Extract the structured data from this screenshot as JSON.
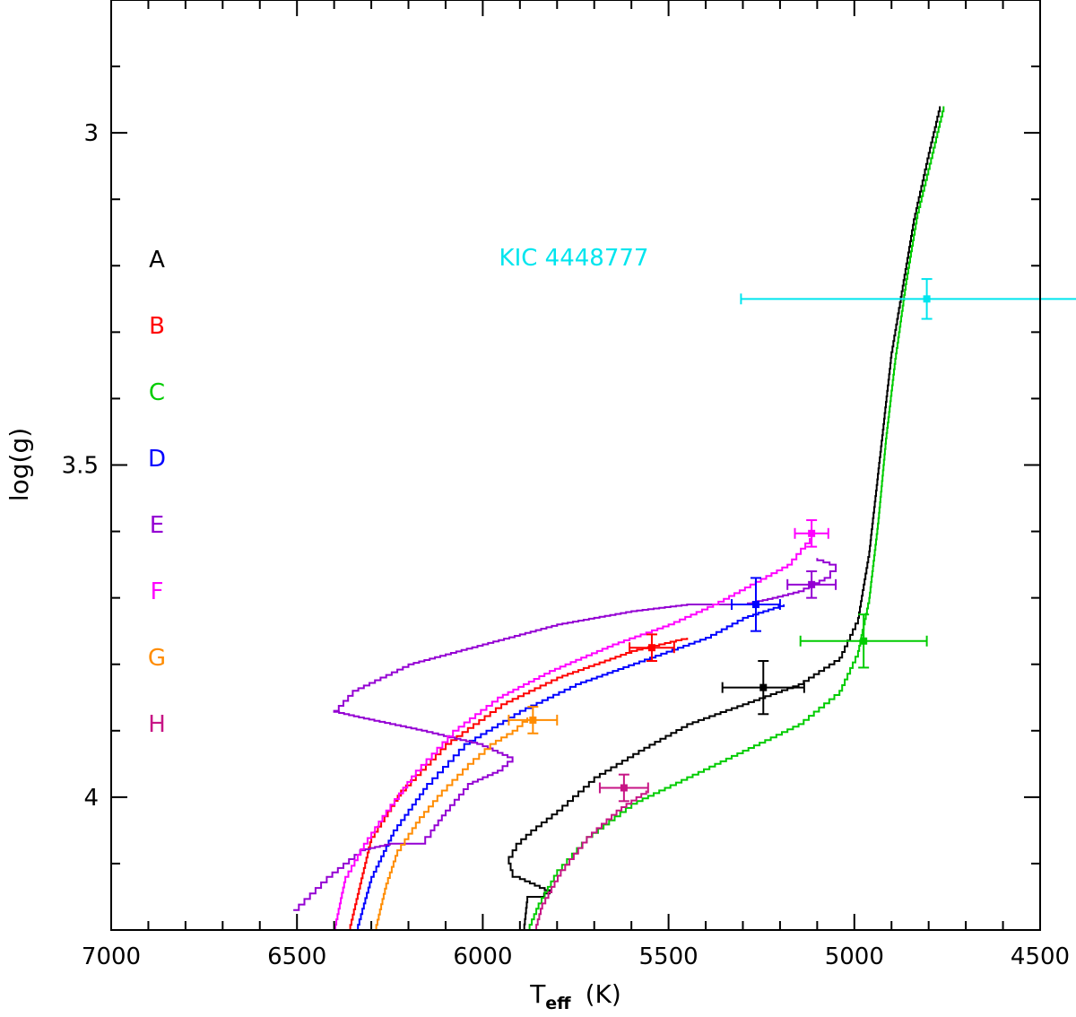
{
  "chart_data": {
    "type": "line",
    "title": "",
    "xlabel": "T",
    "xlabel_sub": "eff",
    "xlabel_unit": "(K)",
    "ylabel": "log(g)",
    "xlim": [
      7000,
      4500
    ],
    "ylim": [
      2.8,
      4.2
    ],
    "y_inverted": true,
    "x_ticks": [
      7000,
      6500,
      6000,
      5500,
      5000,
      4500
    ],
    "y_ticks": [
      3,
      3.5,
      4
    ],
    "y_tick_labels": [
      "3",
      "3.5",
      "4"
    ],
    "annotation": {
      "text": "KIC 4448777",
      "color": "#00e5ee"
    },
    "legend_position": "left",
    "series": [
      {
        "name": "A",
        "color": "#000000",
        "track": [
          [
            5890,
            4.2
          ],
          [
            5880,
            4.15
          ],
          [
            5850,
            4.15
          ],
          [
            5820,
            4.14
          ],
          [
            5860,
            4.13
          ],
          [
            5900,
            4.12
          ],
          [
            5920,
            4.11
          ],
          [
            5930,
            4.09
          ],
          [
            5910,
            4.07
          ],
          [
            5870,
            4.05
          ],
          [
            5800,
            4.02
          ],
          [
            5700,
            3.97
          ],
          [
            5580,
            3.93
          ],
          [
            5450,
            3.89
          ],
          [
            5300,
            3.86
          ],
          [
            5150,
            3.83
          ],
          [
            5040,
            3.79
          ],
          [
            4990,
            3.73
          ],
          [
            4960,
            3.63
          ],
          [
            4940,
            3.53
          ],
          [
            4920,
            3.43
          ],
          [
            4900,
            3.33
          ],
          [
            4870,
            3.23
          ],
          [
            4840,
            3.13
          ],
          [
            4800,
            3.03
          ],
          [
            4770,
            2.96
          ]
        ],
        "point": {
          "x": 5245,
          "y": 3.835,
          "xerr": 110,
          "yerr": 0.04
        }
      },
      {
        "name": "B",
        "color": "#ff0000",
        "track": [
          [
            6360,
            4.2
          ],
          [
            6330,
            4.13
          ],
          [
            6300,
            4.06
          ],
          [
            6220,
            3.99
          ],
          [
            6100,
            3.92
          ],
          [
            5950,
            3.86
          ],
          [
            5800,
            3.82
          ],
          [
            5600,
            3.78
          ],
          [
            5450,
            3.76
          ]
        ],
        "point": {
          "x": 5545,
          "y": 3.775,
          "xerr": 60,
          "yerr": 0.02
        }
      },
      {
        "name": "C",
        "color": "#00cc00",
        "track": [
          [
            5880,
            4.2
          ],
          [
            5850,
            4.16
          ],
          [
            5800,
            4.11
          ],
          [
            5720,
            4.06
          ],
          [
            5600,
            4.01
          ],
          [
            5450,
            3.97
          ],
          [
            5300,
            3.93
          ],
          [
            5150,
            3.89
          ],
          [
            5040,
            3.84
          ],
          [
            4990,
            3.78
          ],
          [
            4960,
            3.7
          ],
          [
            4935,
            3.58
          ],
          [
            4915,
            3.46
          ],
          [
            4890,
            3.34
          ],
          [
            4860,
            3.22
          ],
          [
            4830,
            3.12
          ],
          [
            4790,
            3.03
          ],
          [
            4760,
            2.96
          ]
        ],
        "point": {
          "x": 4975,
          "y": 3.765,
          "xerr": 170,
          "yerr": 0.04
        }
      },
      {
        "name": "D",
        "color": "#0000ff",
        "track": [
          [
            6340,
            4.2
          ],
          [
            6300,
            4.12
          ],
          [
            6240,
            4.05
          ],
          [
            6150,
            3.98
          ],
          [
            6050,
            3.92
          ],
          [
            5900,
            3.87
          ],
          [
            5750,
            3.83
          ],
          [
            5550,
            3.79
          ],
          [
            5400,
            3.76
          ],
          [
            5300,
            3.73
          ],
          [
            5190,
            3.71
          ]
        ],
        "point": {
          "x": 5265,
          "y": 3.71,
          "xerr": 65,
          "yerr": 0.04
        }
      },
      {
        "name": "E",
        "color": "#9400d3",
        "track": [
          [
            6510,
            4.17
          ],
          [
            6420,
            4.12
          ],
          [
            6330,
            4.08
          ],
          [
            6250,
            4.07
          ],
          [
            6170,
            4.07
          ],
          [
            6140,
            4.05
          ],
          [
            6100,
            4.02
          ],
          [
            6040,
            3.98
          ],
          [
            5960,
            3.96
          ],
          [
            5920,
            3.94
          ],
          [
            6000,
            3.92
          ],
          [
            6150,
            3.9
          ],
          [
            6320,
            3.88
          ],
          [
            6400,
            3.87
          ],
          [
            6350,
            3.84
          ],
          [
            6200,
            3.8
          ],
          [
            6000,
            3.77
          ],
          [
            5800,
            3.74
          ],
          [
            5600,
            3.72
          ],
          [
            5450,
            3.71
          ],
          [
            5300,
            3.71
          ],
          [
            5220,
            3.7
          ],
          [
            5150,
            3.69
          ],
          [
            5080,
            3.67
          ],
          [
            5050,
            3.65
          ],
          [
            5100,
            3.64
          ]
        ],
        "point": {
          "x": 5115,
          "y": 3.68,
          "xerr": 65,
          "yerr": 0.02
        }
      },
      {
        "name": "F",
        "color": "#ff00ff",
        "track": [
          [
            6400,
            4.2
          ],
          [
            6370,
            4.12
          ],
          [
            6320,
            4.07
          ],
          [
            6260,
            4.02
          ],
          [
            6180,
            3.96
          ],
          [
            6080,
            3.9
          ],
          [
            5960,
            3.85
          ],
          [
            5820,
            3.81
          ],
          [
            5650,
            3.77
          ],
          [
            5500,
            3.74
          ],
          [
            5380,
            3.71
          ],
          [
            5280,
            3.68
          ],
          [
            5180,
            3.65
          ],
          [
            5120,
            3.61
          ]
        ],
        "point": {
          "x": 5115,
          "y": 3.603,
          "xerr": 45,
          "yerr": 0.02
        }
      },
      {
        "name": "G",
        "color": "#ff8c00",
        "track": [
          [
            6290,
            4.2
          ],
          [
            6260,
            4.13
          ],
          [
            6230,
            4.08
          ],
          [
            6170,
            4.03
          ],
          [
            6110,
            3.99
          ],
          [
            6040,
            3.95
          ],
          [
            5980,
            3.92
          ],
          [
            5920,
            3.9
          ],
          [
            5880,
            3.88
          ]
        ],
        "point": {
          "x": 5865,
          "y": 3.884,
          "xerr": 65,
          "yerr": 0.02
        }
      },
      {
        "name": "H",
        "color": "#c71585",
        "track": [
          [
            5860,
            4.2
          ],
          [
            5840,
            4.16
          ],
          [
            5790,
            4.11
          ],
          [
            5720,
            4.06
          ],
          [
            5640,
            4.02
          ],
          [
            5560,
            3.99
          ]
        ],
        "point": {
          "x": 5620,
          "y": 3.986,
          "xerr": 65,
          "yerr": 0.02
        }
      }
    ],
    "extra_points": [
      {
        "color": "#00e5ee",
        "x": 4805,
        "y": 3.25,
        "xerr": 500,
        "yerr": 0.03
      }
    ]
  }
}
